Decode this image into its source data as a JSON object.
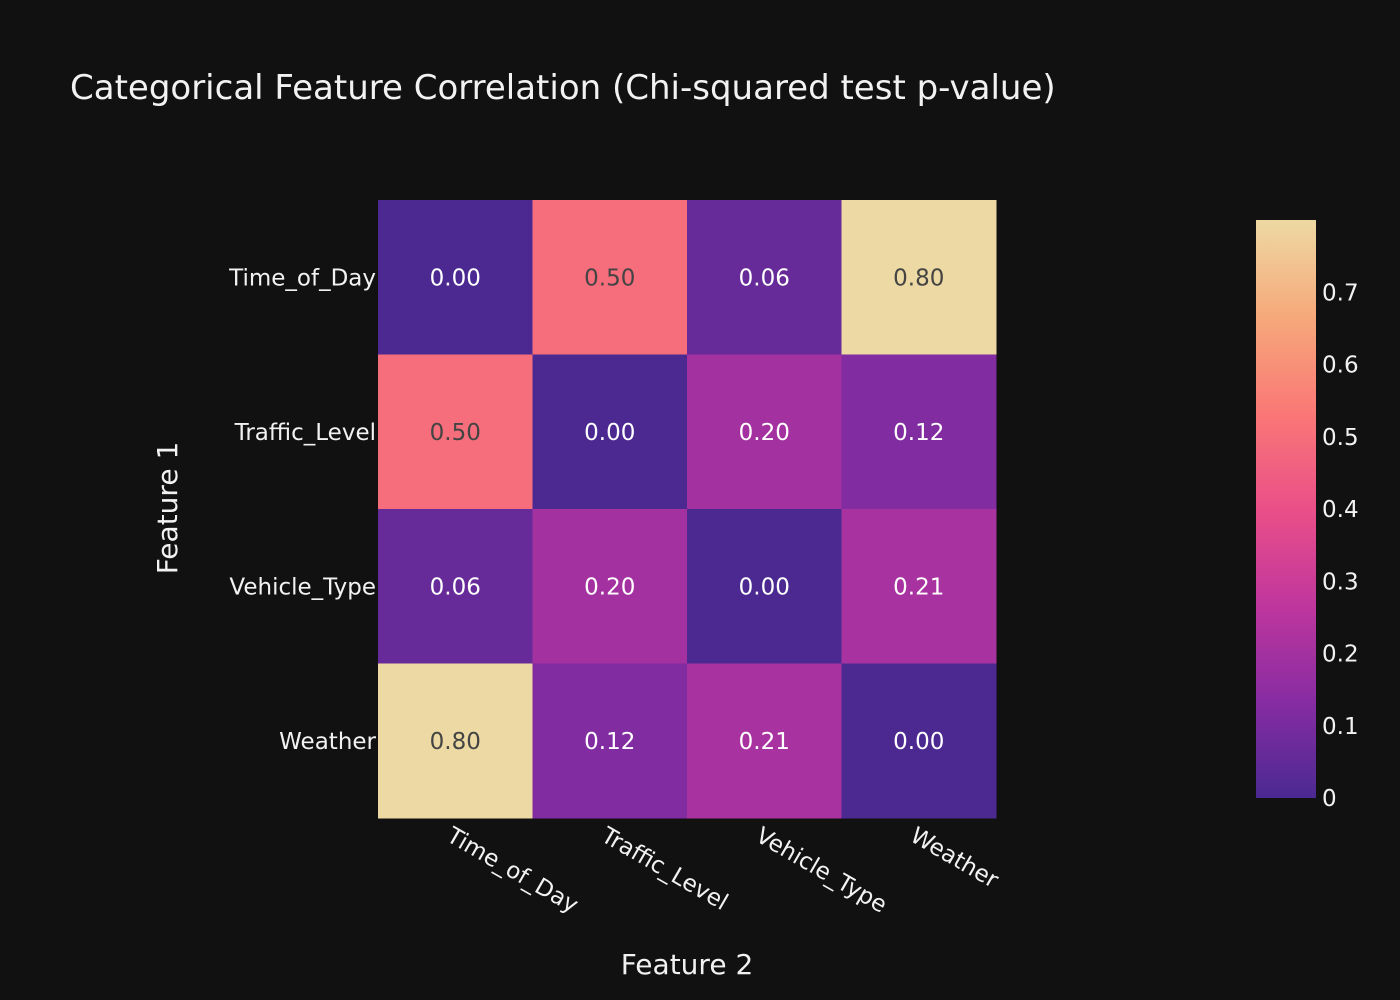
{
  "chart_data": {
    "type": "heatmap",
    "title": "Categorical Feature Correlation (Chi-squared test p-value)",
    "xlabel": "Feature 2",
    "ylabel": "Feature 1",
    "x": [
      "Time_of_Day",
      "Traffic_Level",
      "Vehicle_Type",
      "Weather"
    ],
    "y": [
      "Time_of_Day",
      "Traffic_Level",
      "Vehicle_Type",
      "Weather"
    ],
    "z": [
      [
        0.0,
        0.5,
        0.06,
        0.8
      ],
      [
        0.5,
        0.0,
        0.2,
        0.12
      ],
      [
        0.06,
        0.2,
        0.0,
        0.21
      ],
      [
        0.8,
        0.12,
        0.21,
        0.0
      ]
    ],
    "cell_labels": [
      [
        "0.00",
        "0.50",
        "0.06",
        "0.80"
      ],
      [
        "0.50",
        "0.00",
        "0.20",
        "0.12"
      ],
      [
        "0.06",
        "0.20",
        "0.00",
        "0.21"
      ],
      [
        "0.80",
        "0.12",
        "0.21",
        "0.00"
      ]
    ],
    "zrange": [
      0,
      0.8
    ],
    "colorscale": [
      "#4b2991",
      "#872ca2",
      "#c0369d",
      "#ea4f88",
      "#fa7876",
      "#f6a97a",
      "#edd9a3"
    ],
    "colorbar_ticks": [
      {
        "value": 0,
        "label": "0"
      },
      {
        "value": 0.1,
        "label": "0.1"
      },
      {
        "value": 0.2,
        "label": "0.2"
      },
      {
        "value": 0.3,
        "label": "0.3"
      },
      {
        "value": 0.4,
        "label": "0.4"
      },
      {
        "value": 0.5,
        "label": "0.5"
      },
      {
        "value": 0.6,
        "label": "0.6"
      },
      {
        "value": 0.7,
        "label": "0.7"
      }
    ],
    "legend": "right"
  }
}
